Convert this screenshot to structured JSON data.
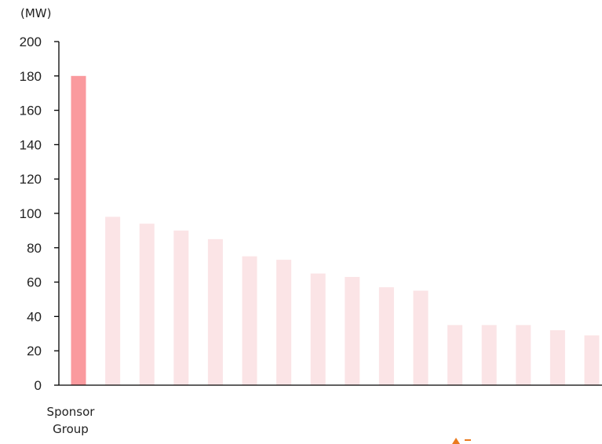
{
  "chart_data": {
    "type": "bar",
    "unit_label": "(MW)",
    "yticks": [
      "0",
      "20",
      "40",
      "60",
      "80",
      "100",
      "120",
      "140",
      "160",
      "180",
      "200"
    ],
    "ylim": [
      0,
      200
    ],
    "highlight_label_line1": "Sponsor",
    "highlight_label_line2": "Group",
    "values": [
      180,
      98,
      94,
      90,
      85,
      75,
      73,
      65,
      63,
      57,
      55,
      35,
      35,
      35,
      32,
      29
    ],
    "highlight_index": 0,
    "colors": {
      "highlight": "#fa9a9e",
      "other": "#fbe4e6",
      "axis": "#000000",
      "text": "#222222"
    },
    "grid": false
  },
  "decor": {
    "corner_icon": "orange-triangle-mark"
  }
}
